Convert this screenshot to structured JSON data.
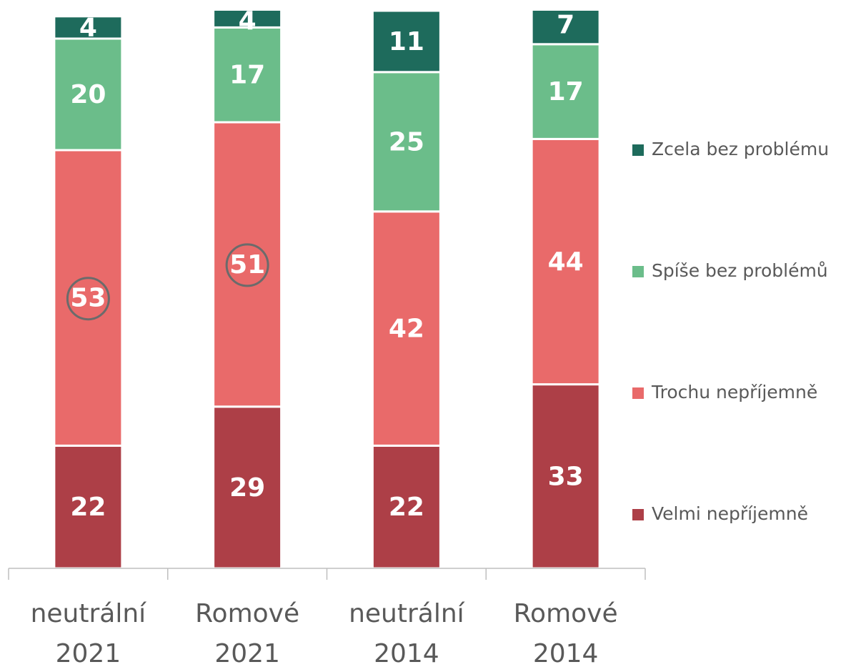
{
  "chart_data": {
    "type": "stacked_bar",
    "categories": [
      "neutrální 2021",
      "Romové 2021",
      "neutrální 2014",
      "Romové 2014"
    ],
    "series": [
      {
        "name": "Velmi nepříjemně",
        "color": "#ad3f47",
        "values": [
          22,
          29,
          22,
          33
        ]
      },
      {
        "name": "Trochu nepříjemně",
        "color": "#e96a6a",
        "values": [
          53,
          51,
          42,
          44
        ]
      },
      {
        "name": "Spíše bez problémů",
        "color": "#6bbd8a",
        "values": [
          20,
          17,
          25,
          17
        ]
      },
      {
        "name": "Zcela bez problému",
        "color": "#1e6b5c",
        "values": [
          4,
          4,
          11,
          7
        ]
      }
    ],
    "ylim": [
      0,
      100
    ]
  }
}
